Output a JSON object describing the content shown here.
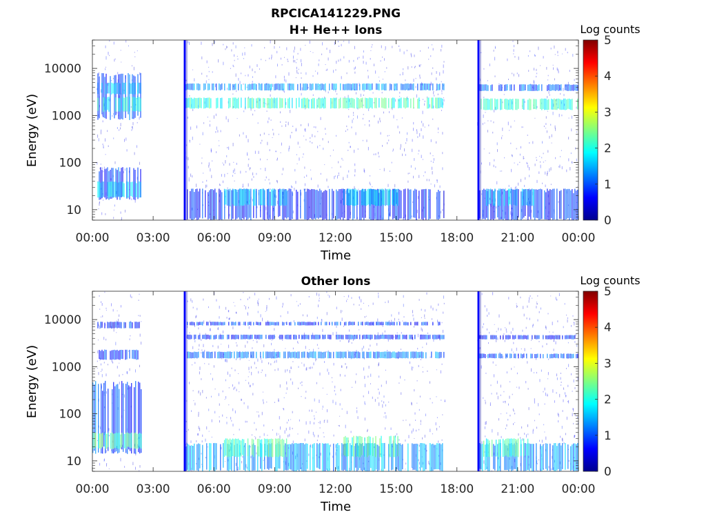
{
  "figure_title": "RPCICA141229.PNG",
  "colors": {
    "colormap": [
      "#00008f",
      "#0000ff",
      "#0080ff",
      "#00ffff",
      "#80ff80",
      "#ffff00",
      "#ff8000",
      "#ff0000",
      "#800000"
    ],
    "axis": "#262626"
  },
  "chart_data": [
    {
      "type": "heatmap",
      "title": "H+ He++ Ions",
      "xlabel": "Time",
      "ylabel": "Energy (eV)",
      "x_tick_labels": [
        "00:00",
        "03:00",
        "06:00",
        "09:00",
        "12:00",
        "15:00",
        "18:00",
        "21:00",
        "00:00"
      ],
      "x_ticks_hours": [
        0,
        3,
        6,
        9,
        12,
        15,
        18,
        21,
        24
      ],
      "xlim_hours": [
        0,
        24
      ],
      "y_scale": "log",
      "y_tick_values": [
        10,
        100,
        1000,
        10000
      ],
      "y_tick_labels": [
        "10",
        "100",
        "1000",
        "10000"
      ],
      "ylim": [
        6,
        40000
      ],
      "colorbar": {
        "label": "Log counts",
        "range": [
          0,
          5
        ],
        "ticks": [
          "0",
          "1",
          "2",
          "3",
          "4",
          "5"
        ]
      },
      "data_gaps_hours": [
        [
          2.4,
          4.5
        ],
        [
          17.4,
          19.0
        ]
      ],
      "spikes_hours": [
        4.58,
        19.08
      ],
      "bands": [
        {
          "t": [
            0.25,
            2.4
          ],
          "e": [
            800,
            8000
          ],
          "level": 1.0
        },
        {
          "t": [
            0.25,
            2.4
          ],
          "e": [
            1200,
            2500
          ],
          "level": 1.9
        },
        {
          "t": [
            0.25,
            2.4
          ],
          "e": [
            2800,
            5000
          ],
          "level": 1.5
        },
        {
          "t": [
            0.25,
            2.4
          ],
          "e": [
            16,
            80
          ],
          "level": 0.9
        },
        {
          "t": [
            0.25,
            2.4
          ],
          "e": [
            18,
            40
          ],
          "level": 1.6
        },
        {
          "t": [
            4.6,
            17.4
          ],
          "e": [
            1400,
            2400
          ],
          "level": 2.1
        },
        {
          "t": [
            4.6,
            17.4
          ],
          "e": [
            3400,
            4800
          ],
          "level": 1.3
        },
        {
          "t": [
            4.6,
            17.4
          ],
          "e": [
            6,
            28
          ],
          "level": 0.8
        },
        {
          "t": [
            6.5,
            9.6
          ],
          "e": [
            12,
            28
          ],
          "level": 1.5
        },
        {
          "t": [
            12.4,
            15.1
          ],
          "e": [
            12,
            28
          ],
          "level": 1.6
        },
        {
          "t": [
            19.1,
            24.0
          ],
          "e": [
            1300,
            2300
          ],
          "level": 2.0
        },
        {
          "t": [
            19.1,
            24.0
          ],
          "e": [
            3300,
            4600
          ],
          "level": 1.1
        },
        {
          "t": [
            19.1,
            24.0
          ],
          "e": [
            6,
            28
          ],
          "level": 0.8
        },
        {
          "t": [
            19.3,
            21.8
          ],
          "e": [
            12,
            28
          ],
          "level": 1.5
        }
      ]
    },
    {
      "type": "heatmap",
      "title": "Other Ions",
      "xlabel": "Time",
      "ylabel": "Energy (eV)",
      "x_tick_labels": [
        "00:00",
        "03:00",
        "06:00",
        "09:00",
        "12:00",
        "15:00",
        "18:00",
        "21:00",
        "00:00"
      ],
      "x_ticks_hours": [
        0,
        3,
        6,
        9,
        12,
        15,
        18,
        21,
        24
      ],
      "xlim_hours": [
        0,
        24
      ],
      "y_scale": "log",
      "y_tick_values": [
        10,
        100,
        1000,
        10000
      ],
      "y_tick_labels": [
        "10",
        "100",
        "1000",
        "10000"
      ],
      "ylim": [
        6,
        40000
      ],
      "colorbar": {
        "label": "Log counts",
        "range": [
          0,
          5
        ],
        "ticks": [
          "0",
          "1",
          "2",
          "3",
          "4",
          "5"
        ]
      },
      "data_gaps_hours": [
        [
          2.4,
          4.5
        ],
        [
          17.4,
          19.0
        ]
      ],
      "spikes_hours": [
        4.58,
        19.08
      ],
      "bands": [
        {
          "t": [
            0.0,
            2.4
          ],
          "e": [
            14,
            500
          ],
          "level": 1.0
        },
        {
          "t": [
            0.0,
            2.4
          ],
          "e": [
            18,
            40
          ],
          "level": 2.3
        },
        {
          "t": [
            0.25,
            2.4
          ],
          "e": [
            1400,
            2300
          ],
          "level": 0.9
        },
        {
          "t": [
            0.25,
            2.4
          ],
          "e": [
            6500,
            9000
          ],
          "level": 0.8
        },
        {
          "t": [
            4.6,
            17.4
          ],
          "e": [
            7500,
            9000
          ],
          "level": 0.9
        },
        {
          "t": [
            4.6,
            17.4
          ],
          "e": [
            3800,
            4800
          ],
          "level": 0.9
        },
        {
          "t": [
            4.6,
            17.4
          ],
          "e": [
            1500,
            2100
          ],
          "level": 1.2
        },
        {
          "t": [
            4.6,
            17.4
          ],
          "e": [
            6,
            24
          ],
          "level": 1.4
        },
        {
          "t": [
            6.5,
            9.6
          ],
          "e": [
            12,
            30
          ],
          "level": 2.2
        },
        {
          "t": [
            12.4,
            15.1
          ],
          "e": [
            12,
            34
          ],
          "level": 2.2
        },
        {
          "t": [
            19.1,
            24.0
          ],
          "e": [
            1500,
            1900
          ],
          "level": 1.0
        },
        {
          "t": [
            19.1,
            24.0
          ],
          "e": [
            3800,
            4700
          ],
          "level": 0.7
        },
        {
          "t": [
            19.1,
            24.0
          ],
          "e": [
            6,
            24
          ],
          "level": 1.4
        },
        {
          "t": [
            19.3,
            21.6
          ],
          "e": [
            12,
            30
          ],
          "level": 2.1
        }
      ]
    }
  ]
}
